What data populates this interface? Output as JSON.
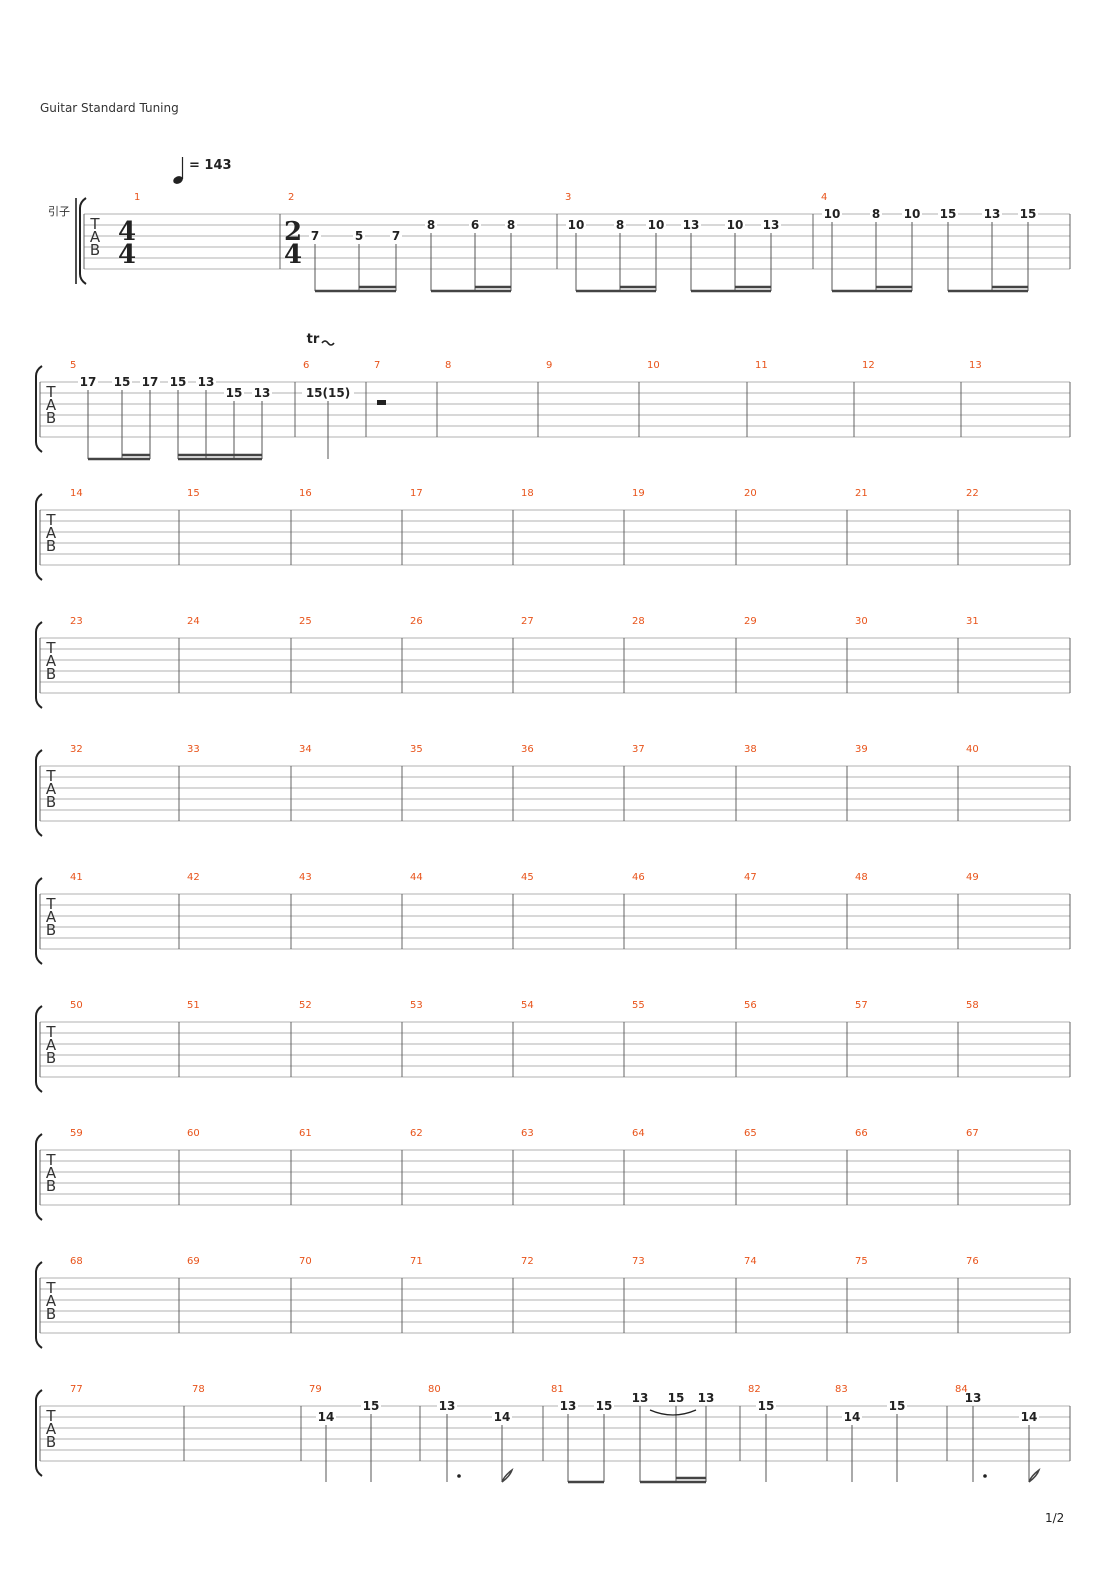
{
  "header": {
    "tuning": "Guitar Standard Tuning"
  },
  "tempo": {
    "symbol": "quarter-note-icon",
    "text": "= 143"
  },
  "instrument_label": "引子",
  "tab_clef": [
    "T",
    "A",
    "B"
  ],
  "time_signatures": [
    {
      "measure": 1,
      "num": "4",
      "den": "4"
    },
    {
      "measure": 2,
      "num": "2",
      "den": "4"
    }
  ],
  "trill_text": "tr",
  "page_number": "1/2",
  "colors": {
    "measure_number": "#e8531a",
    "staff_line": "#999999",
    "text": "#222222"
  },
  "systems": [
    {
      "measures": [
        {
          "number": "1",
          "notes": []
        },
        {
          "number": "2",
          "notes": [
            {
              "fret": "7",
              "string": 2
            },
            {
              "fret": "5",
              "string": 2
            },
            {
              "fret": "7",
              "string": 2
            },
            {
              "fret": "8",
              "string": 1
            },
            {
              "fret": "6",
              "string": 1
            },
            {
              "fret": "8",
              "string": 1
            }
          ]
        },
        {
          "number": "3",
          "notes": [
            {
              "fret": "10",
              "string": 1
            },
            {
              "fret": "8",
              "string": 1
            },
            {
              "fret": "10",
              "string": 1
            },
            {
              "fret": "13",
              "string": 1
            },
            {
              "fret": "10",
              "string": 1
            },
            {
              "fret": "13",
              "string": 1
            }
          ]
        },
        {
          "number": "4",
          "notes": [
            {
              "fret": "10",
              "string": 0
            },
            {
              "fret": "8",
              "string": 0
            },
            {
              "fret": "10",
              "string": 0
            },
            {
              "fret": "15",
              "string": 0
            },
            {
              "fret": "13",
              "string": 0
            },
            {
              "fret": "15",
              "string": 0
            }
          ]
        }
      ]
    },
    {
      "measures": [
        {
          "number": "5",
          "notes": [
            {
              "fret": "17",
              "string": 0
            },
            {
              "fret": "15",
              "string": 0
            },
            {
              "fret": "17",
              "string": 0
            },
            {
              "fret": "15",
              "string": 0
            },
            {
              "fret": "13",
              "string": 0
            },
            {
              "fret": "15",
              "string": 1
            },
            {
              "fret": "13",
              "string": 1
            }
          ]
        },
        {
          "number": "6",
          "notes": [
            {
              "fret": "15(15)",
              "string": 1
            }
          ]
        },
        {
          "number": "7",
          "notes": []
        },
        {
          "number": "8",
          "notes": []
        },
        {
          "number": "9",
          "notes": []
        },
        {
          "number": "10",
          "notes": []
        },
        {
          "number": "11",
          "notes": []
        },
        {
          "number": "12",
          "notes": []
        },
        {
          "number": "13",
          "notes": []
        }
      ]
    },
    {
      "measures": [
        {
          "number": "14",
          "notes": []
        },
        {
          "number": "15",
          "notes": []
        },
        {
          "number": "16",
          "notes": []
        },
        {
          "number": "17",
          "notes": []
        },
        {
          "number": "18",
          "notes": []
        },
        {
          "number": "19",
          "notes": []
        },
        {
          "number": "20",
          "notes": []
        },
        {
          "number": "21",
          "notes": []
        },
        {
          "number": "22",
          "notes": []
        }
      ]
    },
    {
      "measures": [
        {
          "number": "23",
          "notes": []
        },
        {
          "number": "24",
          "notes": []
        },
        {
          "number": "25",
          "notes": []
        },
        {
          "number": "26",
          "notes": []
        },
        {
          "number": "27",
          "notes": []
        },
        {
          "number": "28",
          "notes": []
        },
        {
          "number": "29",
          "notes": []
        },
        {
          "number": "30",
          "notes": []
        },
        {
          "number": "31",
          "notes": []
        }
      ]
    },
    {
      "measures": [
        {
          "number": "32",
          "notes": []
        },
        {
          "number": "33",
          "notes": []
        },
        {
          "number": "34",
          "notes": []
        },
        {
          "number": "35",
          "notes": []
        },
        {
          "number": "36",
          "notes": []
        },
        {
          "number": "37",
          "notes": []
        },
        {
          "number": "38",
          "notes": []
        },
        {
          "number": "39",
          "notes": []
        },
        {
          "number": "40",
          "notes": []
        }
      ]
    },
    {
      "measures": [
        {
          "number": "41",
          "notes": []
        },
        {
          "number": "42",
          "notes": []
        },
        {
          "number": "43",
          "notes": []
        },
        {
          "number": "44",
          "notes": []
        },
        {
          "number": "45",
          "notes": []
        },
        {
          "number": "46",
          "notes": []
        },
        {
          "number": "47",
          "notes": []
        },
        {
          "number": "48",
          "notes": []
        },
        {
          "number": "49",
          "notes": []
        }
      ]
    },
    {
      "measures": [
        {
          "number": "50",
          "notes": []
        },
        {
          "number": "51",
          "notes": []
        },
        {
          "number": "52",
          "notes": []
        },
        {
          "number": "53",
          "notes": []
        },
        {
          "number": "54",
          "notes": []
        },
        {
          "number": "55",
          "notes": []
        },
        {
          "number": "56",
          "notes": []
        },
        {
          "number": "57",
          "notes": []
        },
        {
          "number": "58",
          "notes": []
        }
      ]
    },
    {
      "measures": [
        {
          "number": "59",
          "notes": []
        },
        {
          "number": "60",
          "notes": []
        },
        {
          "number": "61",
          "notes": []
        },
        {
          "number": "62",
          "notes": []
        },
        {
          "number": "63",
          "notes": []
        },
        {
          "number": "64",
          "notes": []
        },
        {
          "number": "65",
          "notes": []
        },
        {
          "number": "66",
          "notes": []
        },
        {
          "number": "67",
          "notes": []
        }
      ]
    },
    {
      "measures": [
        {
          "number": "68",
          "notes": []
        },
        {
          "number": "69",
          "notes": []
        },
        {
          "number": "70",
          "notes": []
        },
        {
          "number": "71",
          "notes": []
        },
        {
          "number": "72",
          "notes": []
        },
        {
          "number": "73",
          "notes": []
        },
        {
          "number": "74",
          "notes": []
        },
        {
          "number": "75",
          "notes": []
        },
        {
          "number": "76",
          "notes": []
        }
      ]
    },
    {
      "measures": [
        {
          "number": "77",
          "notes": []
        },
        {
          "number": "78",
          "notes": []
        },
        {
          "number": "79",
          "notes": [
            {
              "fret": "14",
              "string": 1
            },
            {
              "fret": "15",
              "string": 0
            }
          ]
        },
        {
          "number": "80",
          "notes": [
            {
              "fret": "13",
              "string": 0
            },
            {
              "fret": "14",
              "string": 1
            }
          ]
        },
        {
          "number": "81",
          "notes": [
            {
              "fret": "13",
              "string": 0
            },
            {
              "fret": "15",
              "string": 0
            },
            {
              "fret": "13",
              "string": -1
            },
            {
              "fret": "15",
              "string": -1
            },
            {
              "fret": "13",
              "string": -1
            }
          ]
        },
        {
          "number": "82",
          "notes": [
            {
              "fret": "15",
              "string": 0
            }
          ]
        },
        {
          "number": "83",
          "notes": [
            {
              "fret": "14",
              "string": 1
            },
            {
              "fret": "15",
              "string": 0
            }
          ]
        },
        {
          "number": "84",
          "notes": [
            {
              "fret": "13",
              "string": -1
            },
            {
              "fret": "14",
              "string": 1
            }
          ]
        }
      ]
    }
  ]
}
